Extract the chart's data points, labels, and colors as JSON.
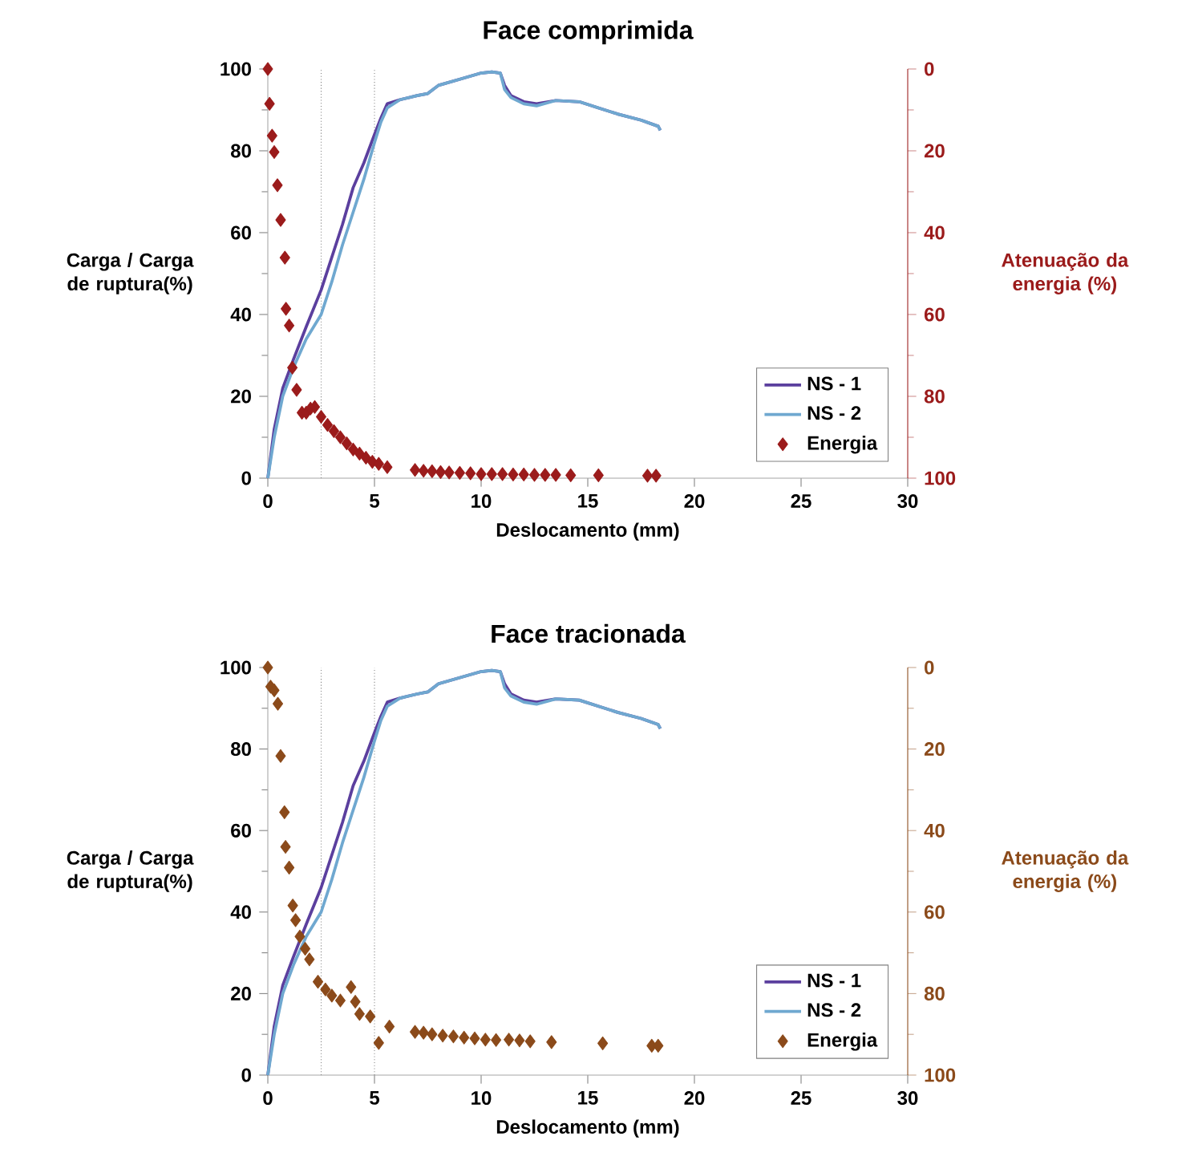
{
  "chart_data": [
    {
      "type": "line",
      "title": "Face comprimida",
      "xlabel": "Deslocamento (mm)",
      "ylabel": "Carga / Carga de ruptura(%)",
      "y2label": "Atenuação da energia (%)",
      "xlim": [
        0,
        30
      ],
      "xticks": [
        0,
        5,
        10,
        15,
        20,
        25,
        30
      ],
      "ylim": [
        0,
        100
      ],
      "yticks": [
        0,
        20,
        40,
        60,
        80,
        100
      ],
      "y2lim": [
        100,
        0
      ],
      "y2ticks": [
        0,
        20,
        40,
        60,
        80,
        100
      ],
      "legend": "bottom right",
      "grid": false,
      "ref_lines": [
        {
          "axis": "x",
          "value": 2.5,
          "color": "#808080",
          "line_style": "dotted"
        },
        {
          "axis": "x",
          "value": 5,
          "color": "#808080",
          "line_style": "dotted"
        }
      ],
      "series": [
        {
          "name": "NS - 1",
          "type": "line",
          "color": "#5b3f9e",
          "marker": "none",
          "line_style": "solid",
          "x": [
            0,
            0.3,
            0.7,
            1.2,
            1.8,
            2.5,
            3.0,
            3.5,
            4.0,
            4.5,
            5.0,
            5.3,
            5.6,
            6.2,
            7.0,
            7.5,
            8.0,
            9.0,
            10.0,
            10.5,
            10.9,
            11.1,
            11.4,
            12.0,
            12.6,
            13.5,
            14.6,
            15.5,
            16.4,
            17.5,
            18.3,
            18.4
          ],
          "values": [
            0,
            12,
            22,
            29,
            37,
            46,
            54,
            62,
            71,
            77,
            84,
            88,
            91.5,
            92.5,
            93.5,
            94,
            96,
            97.5,
            99,
            99.3,
            99,
            96,
            93.5,
            92,
            91.5,
            92.3,
            92,
            90.5,
            89,
            87.5,
            86,
            85
          ]
        },
        {
          "name": "NS - 2",
          "type": "line",
          "color": "#6fa8d0",
          "marker": "none",
          "line_style": "solid",
          "x": [
            0,
            0.3,
            0.7,
            1.2,
            1.8,
            2.5,
            3.0,
            3.5,
            4.0,
            4.5,
            5.0,
            5.3,
            5.6,
            6.2,
            7.0,
            7.5,
            8.0,
            9.0,
            10.0,
            10.5,
            10.9,
            11.1,
            11.4,
            12.0,
            12.6,
            13.5,
            14.6,
            15.5,
            16.4,
            17.5,
            18.3,
            18.4
          ],
          "values": [
            0,
            10,
            20,
            27,
            34,
            40,
            48,
            57,
            65,
            73,
            82,
            87,
            90.5,
            92.5,
            93.5,
            94,
            96,
            97.5,
            99,
            99.3,
            99,
            95,
            93,
            91.5,
            91,
            92.3,
            92,
            90.5,
            89,
            87.5,
            86,
            85
          ]
        },
        {
          "name": "Energia",
          "type": "scatter",
          "axis": "y2",
          "color": "#9b1b1b",
          "marker": "diamond",
          "x": [
            0,
            0.08,
            0.2,
            0.3,
            0.45,
            0.6,
            0.8,
            0.85,
            1.0,
            1.15,
            1.35,
            1.6,
            1.8,
            2.0,
            2.2,
            2.5,
            2.8,
            3.1,
            3.4,
            3.7,
            4.0,
            4.3,
            4.6,
            4.9,
            5.2,
            5.6,
            6.9,
            7.3,
            7.7,
            8.1,
            8.5,
            9.0,
            9.5,
            10.0,
            10.5,
            11.0,
            11.5,
            12.0,
            12.5,
            13.0,
            13.5,
            14.2,
            15.5,
            17.8,
            18.2
          ],
          "values": [
            0,
            8.5,
            16.3,
            20.3,
            28.4,
            36.9,
            46.1,
            58.6,
            62.7,
            73,
            78.4,
            84,
            84,
            83,
            82.6,
            85,
            87,
            88.5,
            90,
            91.5,
            93,
            94,
            95,
            96,
            96.5,
            97.3,
            98,
            98.2,
            98.3,
            98.5,
            98.6,
            98.7,
            98.8,
            99,
            99,
            99,
            99.1,
            99.1,
            99.2,
            99.2,
            99.2,
            99.3,
            99.3,
            99.4,
            99.4
          ]
        }
      ]
    },
    {
      "type": "line",
      "title": "Face tracionada",
      "xlabel": "Deslocamento (mm)",
      "ylabel": "Carga / Carga de ruptura(%)",
      "y2label": "Atenuação da energia (%)",
      "xlim": [
        0,
        30
      ],
      "xticks": [
        0,
        5,
        10,
        15,
        20,
        25,
        30
      ],
      "ylim": [
        0,
        100
      ],
      "yticks": [
        0,
        20,
        40,
        60,
        80,
        100
      ],
      "y2lim": [
        100,
        0
      ],
      "y2ticks": [
        0,
        20,
        40,
        60,
        80,
        100
      ],
      "legend": "bottom right",
      "grid": false,
      "ref_lines": [
        {
          "axis": "x",
          "value": 2.5,
          "color": "#808080",
          "line_style": "dotted"
        },
        {
          "axis": "x",
          "value": 5,
          "color": "#808080",
          "line_style": "dotted"
        }
      ],
      "series": [
        {
          "name": "NS - 1",
          "type": "line",
          "color": "#5b3f9e",
          "marker": "none",
          "line_style": "solid",
          "x": [
            0,
            0.3,
            0.7,
            1.2,
            1.8,
            2.5,
            3.0,
            3.5,
            4.0,
            4.5,
            5.0,
            5.3,
            5.6,
            6.2,
            7.0,
            7.5,
            8.0,
            9.0,
            10.0,
            10.5,
            10.9,
            11.1,
            11.4,
            12.0,
            12.6,
            13.5,
            14.6,
            15.5,
            16.4,
            17.5,
            18.3,
            18.4
          ],
          "values": [
            0,
            12,
            22,
            29,
            37,
            46,
            54,
            62,
            71,
            77,
            84,
            88,
            91.5,
            92.5,
            93.5,
            94,
            96,
            97.5,
            99,
            99.3,
            99,
            96,
            93.5,
            92,
            91.5,
            92.3,
            92,
            90.5,
            89,
            87.5,
            86,
            85
          ]
        },
        {
          "name": "NS - 2",
          "type": "line",
          "color": "#6fa8d0",
          "marker": "none",
          "line_style": "solid",
          "x": [
            0,
            0.3,
            0.7,
            1.2,
            1.8,
            2.5,
            3.0,
            3.5,
            4.0,
            4.5,
            5.0,
            5.3,
            5.6,
            6.2,
            7.0,
            7.5,
            8.0,
            9.0,
            10.0,
            10.5,
            10.9,
            11.1,
            11.4,
            12.0,
            12.6,
            13.5,
            14.6,
            15.5,
            16.4,
            17.5,
            18.3,
            18.4
          ],
          "values": [
            0,
            10,
            20,
            27,
            34,
            40,
            48,
            57,
            65,
            73,
            82,
            87,
            90.5,
            92.5,
            93.5,
            94,
            96,
            97.5,
            99,
            99.3,
            99,
            95,
            93,
            91.5,
            91,
            92.3,
            92,
            90.5,
            89,
            87.5,
            86,
            85
          ]
        },
        {
          "name": "Energia",
          "type": "scatter",
          "axis": "y2",
          "color": "#8b4a1a",
          "marker": "diamond",
          "x": [
            0,
            0.13,
            0.3,
            0.47,
            0.6,
            0.78,
            0.83,
            1.0,
            1.17,
            1.3,
            1.5,
            1.75,
            1.95,
            2.35,
            2.7,
            3.0,
            3.4,
            3.9,
            4.1,
            4.3,
            4.8,
            5.2,
            5.7,
            6.9,
            7.3,
            7.7,
            8.2,
            8.7,
            9.2,
            9.7,
            10.2,
            10.7,
            11.3,
            11.8,
            12.3,
            13.3,
            15.7,
            18.0,
            18.3
          ],
          "values": [
            0,
            4.7,
            5.6,
            8.9,
            21.7,
            35.5,
            44,
            49.1,
            58.4,
            62,
            66,
            69,
            71.6,
            77.1,
            79,
            80.5,
            81.7,
            78.4,
            82,
            85,
            85.6,
            92.1,
            88.1,
            89.4,
            89.6,
            90,
            90.3,
            90.5,
            90.8,
            91,
            91.3,
            91.4,
            91.3,
            91.5,
            91.7,
            91.9,
            92.2,
            92.8,
            92.8
          ]
        }
      ]
    }
  ]
}
